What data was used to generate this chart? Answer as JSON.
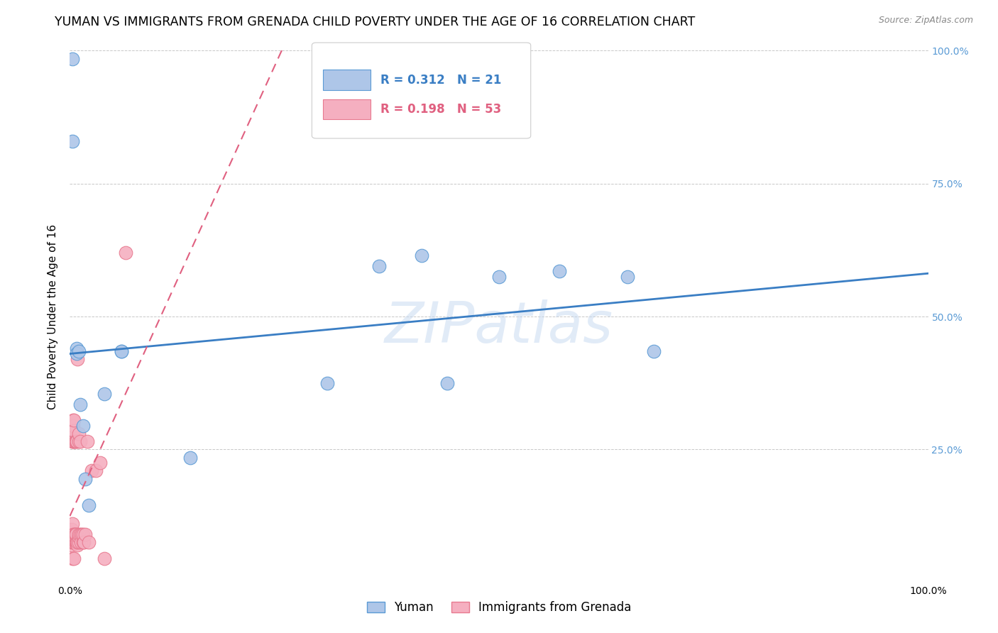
{
  "title": "YUMAN VS IMMIGRANTS FROM GRENADA CHILD POVERTY UNDER THE AGE OF 16 CORRELATION CHART",
  "source": "Source: ZipAtlas.com",
  "ylabel": "Child Poverty Under the Age of 16",
  "xlim": [
    0,
    1.0
  ],
  "ylim": [
    0,
    1.0
  ],
  "yuman_x": [
    0.003,
    0.003,
    0.008,
    0.008,
    0.01,
    0.012,
    0.015,
    0.018,
    0.022,
    0.04,
    0.06,
    0.06,
    0.14,
    0.3,
    0.36,
    0.41,
    0.44,
    0.5,
    0.57,
    0.65,
    0.68
  ],
  "yuman_y": [
    0.985,
    0.83,
    0.44,
    0.43,
    0.435,
    0.335,
    0.295,
    0.195,
    0.145,
    0.355,
    0.435,
    0.435,
    0.235,
    0.375,
    0.595,
    0.615,
    0.375,
    0.575,
    0.585,
    0.575,
    0.435
  ],
  "grenada_x": [
    0.001,
    0.002,
    0.002,
    0.002,
    0.003,
    0.003,
    0.003,
    0.003,
    0.004,
    0.004,
    0.004,
    0.004,
    0.004,
    0.004,
    0.005,
    0.005,
    0.005,
    0.005,
    0.005,
    0.005,
    0.006,
    0.006,
    0.006,
    0.006,
    0.007,
    0.007,
    0.007,
    0.007,
    0.008,
    0.008,
    0.009,
    0.009,
    0.009,
    0.01,
    0.01,
    0.01,
    0.01,
    0.01,
    0.012,
    0.012,
    0.013,
    0.014,
    0.015,
    0.015,
    0.016,
    0.018,
    0.02,
    0.022,
    0.025,
    0.03,
    0.035,
    0.04,
    0.065
  ],
  "grenada_y": [
    0.09,
    0.07,
    0.075,
    0.1,
    0.265,
    0.28,
    0.045,
    0.11,
    0.265,
    0.295,
    0.305,
    0.075,
    0.09,
    0.265,
    0.09,
    0.265,
    0.285,
    0.305,
    0.045,
    0.075,
    0.075,
    0.085,
    0.09,
    0.265,
    0.09,
    0.265,
    0.075,
    0.09,
    0.265,
    0.075,
    0.07,
    0.075,
    0.42,
    0.075,
    0.085,
    0.09,
    0.265,
    0.28,
    0.09,
    0.265,
    0.075,
    0.09,
    0.075,
    0.09,
    0.075,
    0.09,
    0.265,
    0.075,
    0.21,
    0.21,
    0.225,
    0.045,
    0.62
  ],
  "yuman_color": "#aec6e8",
  "grenada_color": "#f5afc0",
  "yuman_edge": "#5b9bd5",
  "grenada_edge": "#e87a90",
  "yuman_R": 0.312,
  "yuman_N": 21,
  "grenada_R": 0.198,
  "grenada_N": 53,
  "trend_yuman_color": "#3a7ec4",
  "trend_grenada_color": "#e06080",
  "watermark": "ZIPatlas",
  "background_color": "#ffffff",
  "grid_color": "#c8c8c8",
  "right_ytick_color": "#5b9bd5",
  "title_fontsize": 12.5,
  "axis_label_fontsize": 11,
  "tick_fontsize": 10,
  "legend_fontsize": 12
}
